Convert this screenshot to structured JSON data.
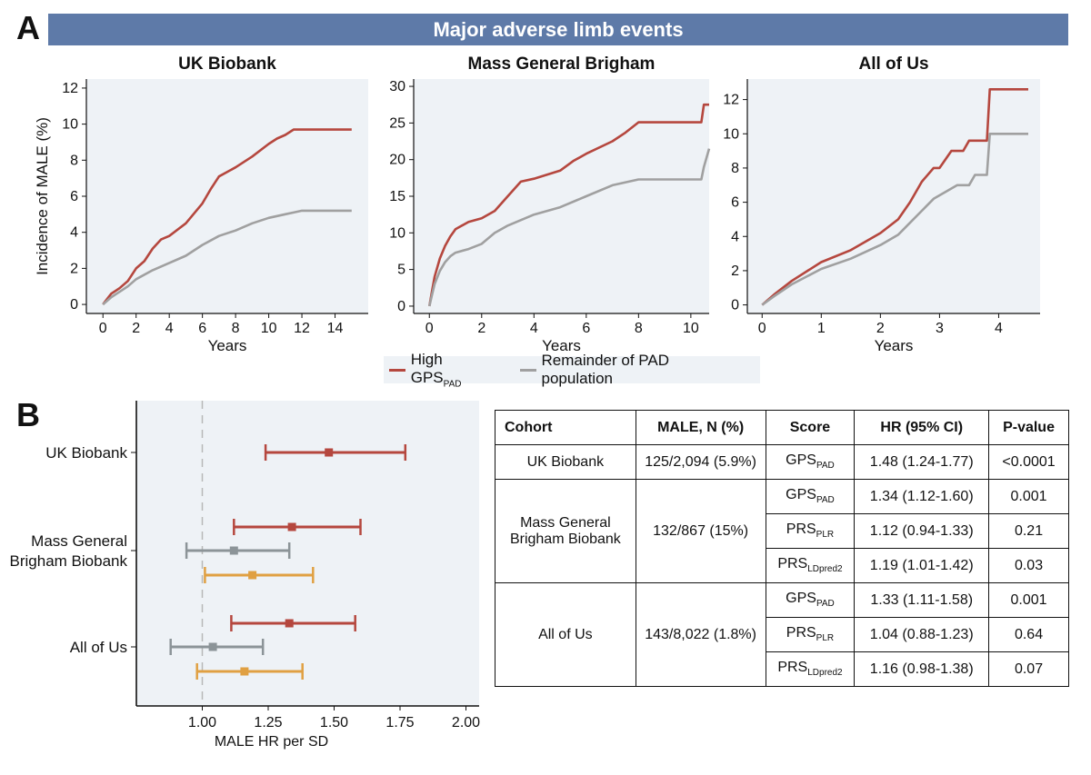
{
  "panel_a_letter": "A",
  "panel_b_letter": "B",
  "banner_title": "Major adverse limb events",
  "legend": {
    "high_label": "High GPS",
    "high_sub": "PAD",
    "rest_label": "Remainder of PAD population"
  },
  "colors": {
    "high": "#b5473e",
    "rest": "#a0a0a0",
    "prs_plr": "#8c9498",
    "prs_ldpred2": "#e0a042",
    "panel_bg": "#eef2f6",
    "banner": "#5e7aa8"
  },
  "chart_data": [
    {
      "type": "line",
      "title": "UK Biobank",
      "xlabel": "Years",
      "ylabel": "Incidence of MALE (%)",
      "xlim": [
        -1,
        16
      ],
      "ylim": [
        -0.5,
        12.5
      ],
      "xticks": [
        0,
        2,
        4,
        6,
        8,
        10,
        12,
        14
      ],
      "yticks": [
        0,
        2,
        4,
        6,
        8,
        10,
        12
      ],
      "series": [
        {
          "name": "High GPS_PAD",
          "color": "#b5473e",
          "x": [
            0,
            0.5,
            1,
            1.5,
            2,
            2.5,
            3,
            3.5,
            4,
            5,
            6,
            6.5,
            7,
            8,
            9,
            10,
            10.5,
            11,
            11.5,
            12,
            13,
            14,
            15
          ],
          "y": [
            0,
            0.6,
            0.9,
            1.3,
            2.0,
            2.4,
            3.1,
            3.6,
            3.8,
            4.5,
            5.6,
            6.4,
            7.1,
            7.6,
            8.2,
            8.9,
            9.2,
            9.4,
            9.7,
            9.7,
            9.7,
            9.7,
            9.7
          ]
        },
        {
          "name": "Remainder of PAD population",
          "color": "#a0a0a0",
          "x": [
            0,
            0.5,
            1,
            1.5,
            2,
            3,
            4,
            5,
            6,
            7,
            8,
            9,
            10,
            11,
            11.5,
            12,
            13,
            14,
            15
          ],
          "y": [
            0,
            0.4,
            0.7,
            1.0,
            1.4,
            1.9,
            2.3,
            2.7,
            3.3,
            3.8,
            4.1,
            4.5,
            4.8,
            5.0,
            5.1,
            5.2,
            5.2,
            5.2,
            5.2
          ]
        }
      ]
    },
    {
      "type": "line",
      "title": "Mass General Brigham",
      "xlabel": "Years",
      "ylabel": "",
      "xlim": [
        -0.6,
        10.7
      ],
      "ylim": [
        -1,
        31
      ],
      "xticks": [
        0,
        2,
        4,
        6,
        8,
        10
      ],
      "yticks": [
        0,
        5,
        10,
        15,
        20,
        25,
        30
      ],
      "series": [
        {
          "name": "High GPS_PAD",
          "color": "#b5473e",
          "x": [
            0,
            0.1,
            0.2,
            0.4,
            0.6,
            0.8,
            1,
            1.5,
            2,
            2.5,
            3,
            3.5,
            4,
            5,
            5.5,
            6,
            7,
            7.5,
            8,
            9,
            10,
            10.4,
            10.5,
            10.7
          ],
          "y": [
            0,
            2,
            4,
            6.5,
            8.2,
            9.5,
            10.5,
            11.5,
            12,
            13,
            15,
            17,
            17.4,
            18.5,
            19.8,
            20.8,
            22.5,
            23.7,
            25.1,
            25.1,
            25.1,
            25.1,
            27.5,
            27.5
          ]
        },
        {
          "name": "Remainder of PAD population",
          "color": "#a0a0a0",
          "x": [
            0,
            0.1,
            0.2,
            0.4,
            0.6,
            0.8,
            1,
            1.5,
            2,
            2.5,
            3,
            4,
            5,
            6,
            7,
            8,
            9,
            10,
            10.4,
            10.5,
            10.7
          ],
          "y": [
            0,
            1.5,
            3,
            4.8,
            6.0,
            6.8,
            7.3,
            7.8,
            8.5,
            10.0,
            11.0,
            12.5,
            13.5,
            15.0,
            16.5,
            17.3,
            17.3,
            17.3,
            17.3,
            19.0,
            21.5
          ]
        }
      ]
    },
    {
      "type": "line",
      "title": "All of Us",
      "xlabel": "Years",
      "ylabel": "",
      "xlim": [
        -0.25,
        4.7
      ],
      "ylim": [
        -0.5,
        13.2
      ],
      "xticks": [
        0,
        1,
        2,
        3,
        4
      ],
      "yticks": [
        0,
        2,
        4,
        6,
        8,
        10,
        12
      ],
      "series": [
        {
          "name": "High GPS_PAD",
          "color": "#b5473e",
          "x": [
            0,
            0.2,
            0.5,
            1,
            1.5,
            2,
            2.3,
            2.5,
            2.7,
            2.9,
            3.0,
            3.2,
            3.4,
            3.5,
            3.8,
            3.85,
            4.0,
            4.5
          ],
          "y": [
            0,
            0.6,
            1.4,
            2.5,
            3.2,
            4.2,
            5.0,
            6.0,
            7.2,
            8.0,
            8.0,
            9.0,
            9.0,
            9.6,
            9.6,
            12.6,
            12.6,
            12.6
          ]
        },
        {
          "name": "Remainder of PAD population",
          "color": "#a0a0a0",
          "x": [
            0,
            0.2,
            0.5,
            1,
            1.5,
            2,
            2.3,
            2.5,
            2.7,
            2.9,
            3.1,
            3.3,
            3.5,
            3.6,
            3.8,
            3.85,
            4.0,
            4.5
          ],
          "y": [
            0,
            0.5,
            1.2,
            2.1,
            2.7,
            3.5,
            4.1,
            4.8,
            5.5,
            6.2,
            6.6,
            7.0,
            7.0,
            7.6,
            7.6,
            10.0,
            10.0,
            10.0
          ]
        }
      ]
    },
    {
      "type": "forest",
      "xlabel": "MALE HR per SD",
      "xlim": [
        0.75,
        2.05
      ],
      "xticks": [
        "1.00",
        "1.25",
        "1.50",
        "1.75",
        "2.00"
      ],
      "xtick_values": [
        1.0,
        1.25,
        1.5,
        1.75,
        2.0
      ],
      "reference": 1.0,
      "groups": [
        "UK Biobank",
        "Mass General\nBrigham Biobank",
        "All of Us"
      ],
      "points": [
        {
          "group": 0,
          "score": "GPS_PAD",
          "color": "#b5473e",
          "hr": 1.48,
          "lo": 1.24,
          "hi": 1.77
        },
        {
          "group": 1,
          "score": "GPS_PAD",
          "color": "#b5473e",
          "hr": 1.34,
          "lo": 1.12,
          "hi": 1.6
        },
        {
          "group": 1,
          "score": "PRS_PLR",
          "color": "#8c9498",
          "hr": 1.12,
          "lo": 0.94,
          "hi": 1.33
        },
        {
          "group": 1,
          "score": "PRS_LDpred2",
          "color": "#e0a042",
          "hr": 1.19,
          "lo": 1.01,
          "hi": 1.42
        },
        {
          "group": 2,
          "score": "GPS_PAD",
          "color": "#b5473e",
          "hr": 1.33,
          "lo": 1.11,
          "hi": 1.58
        },
        {
          "group": 2,
          "score": "PRS_PLR",
          "color": "#8c9498",
          "hr": 1.04,
          "lo": 0.88,
          "hi": 1.23
        },
        {
          "group": 2,
          "score": "PRS_LDpred2",
          "color": "#e0a042",
          "hr": 1.16,
          "lo": 0.98,
          "hi": 1.38
        }
      ]
    }
  ],
  "table": {
    "headers": [
      "Cohort",
      "MALE, N (%)",
      "Score",
      "HR (95% CI)",
      "P-value"
    ],
    "cohorts": [
      {
        "name": "UK Biobank",
        "male": "125/2,094 (5.9%)",
        "rows": [
          {
            "score": "GPS",
            "sub": "PAD",
            "hr": "1.48 (1.24-1.77)",
            "p": "<0.0001"
          }
        ]
      },
      {
        "name": "Mass General Brigham Biobank",
        "male": "132/867 (15%)",
        "rows": [
          {
            "score": "GPS",
            "sub": "PAD",
            "hr": "1.34 (1.12-1.60)",
            "p": "0.001"
          },
          {
            "score": "PRS",
            "sub": "PLR",
            "hr": "1.12 (0.94-1.33)",
            "p": "0.21"
          },
          {
            "score": "PRS",
            "sub": "LDpred2",
            "hr": "1.19 (1.01-1.42)",
            "p": "0.03"
          }
        ]
      },
      {
        "name": "All of Us",
        "male": "143/8,022 (1.8%)",
        "rows": [
          {
            "score": "GPS",
            "sub": "PAD",
            "hr": "1.33 (1.11-1.58)",
            "p": "0.001"
          },
          {
            "score": "PRS",
            "sub": "PLR",
            "hr": "1.04 (0.88-1.23)",
            "p": "0.64"
          },
          {
            "score": "PRS",
            "sub": "LDpred2",
            "hr": "1.16 (0.98-1.38)",
            "p": "0.07"
          }
        ]
      }
    ]
  }
}
